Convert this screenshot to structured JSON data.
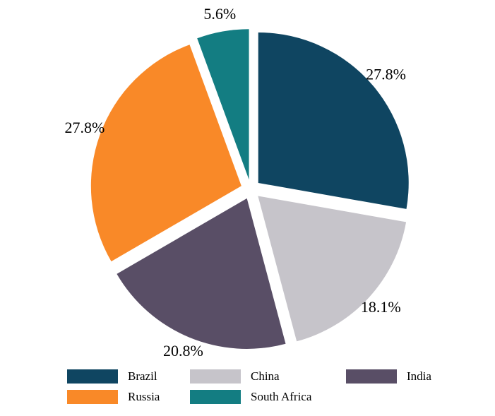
{
  "chart_data": {
    "type": "pie",
    "title": "",
    "categories": [
      "Brazil",
      "China",
      "India",
      "Russia",
      "South Africa"
    ],
    "values": [
      27.8,
      18.1,
      20.8,
      27.8,
      5.6
    ],
    "labels": [
      "27.8%",
      "18.1%",
      "20.8%",
      "27.8%",
      "5.6%"
    ],
    "colors": [
      "#0f4561",
      "#c6c4ca",
      "#594e66",
      "#f98928",
      "#137d82"
    ],
    "exploded": true,
    "start_angle_deg": 0,
    "direction": "clockwise",
    "legend_position": "bottom"
  },
  "legend": {
    "items": [
      {
        "label": "Brazil",
        "color": "#0f4561"
      },
      {
        "label": "China",
        "color": "#c6c4ca"
      },
      {
        "label": "India",
        "color": "#594e66"
      },
      {
        "label": "Russia",
        "color": "#f98928"
      },
      {
        "label": "South Africa",
        "color": "#137d82"
      }
    ]
  }
}
